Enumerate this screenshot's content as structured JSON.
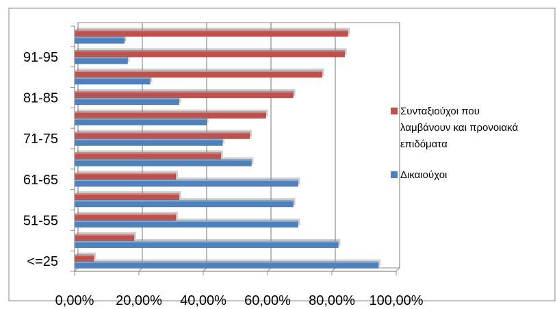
{
  "chart_data": {
    "type": "bar",
    "orientation": "horizontal",
    "title": "",
    "xlabel": "",
    "ylabel": "",
    "xlim": [
      0,
      1
    ],
    "x_ticks": [
      "0,00%",
      "20,00%",
      "40,00%",
      "60,00%",
      "80,00%",
      "100,00%"
    ],
    "y_tick_labels": [
      "<=25",
      "51-55",
      "61-65",
      "71-75",
      "81-85",
      "91-95"
    ],
    "categories": [
      "<=25",
      "",
      "51-55",
      "",
      "61-65",
      "",
      "71-75",
      "",
      "81-85",
      "",
      "91-95",
      ""
    ],
    "grid": "vertical",
    "legend": "right",
    "series": [
      {
        "name": "Δικαιούχοι",
        "color": "#4f81bd",
        "values": [
          0.945,
          0.82,
          0.695,
          0.68,
          0.695,
          0.55,
          0.46,
          0.41,
          0.325,
          0.235,
          0.165,
          0.155
        ]
      },
      {
        "name": "Συνταξιούχοι που λαμβάνουν και προνοιακά επιδόματα",
        "color": "#c0504d",
        "values": [
          0.06,
          0.185,
          0.315,
          0.325,
          0.315,
          0.455,
          0.545,
          0.595,
          0.68,
          0.77,
          0.84,
          0.85
        ]
      }
    ]
  }
}
